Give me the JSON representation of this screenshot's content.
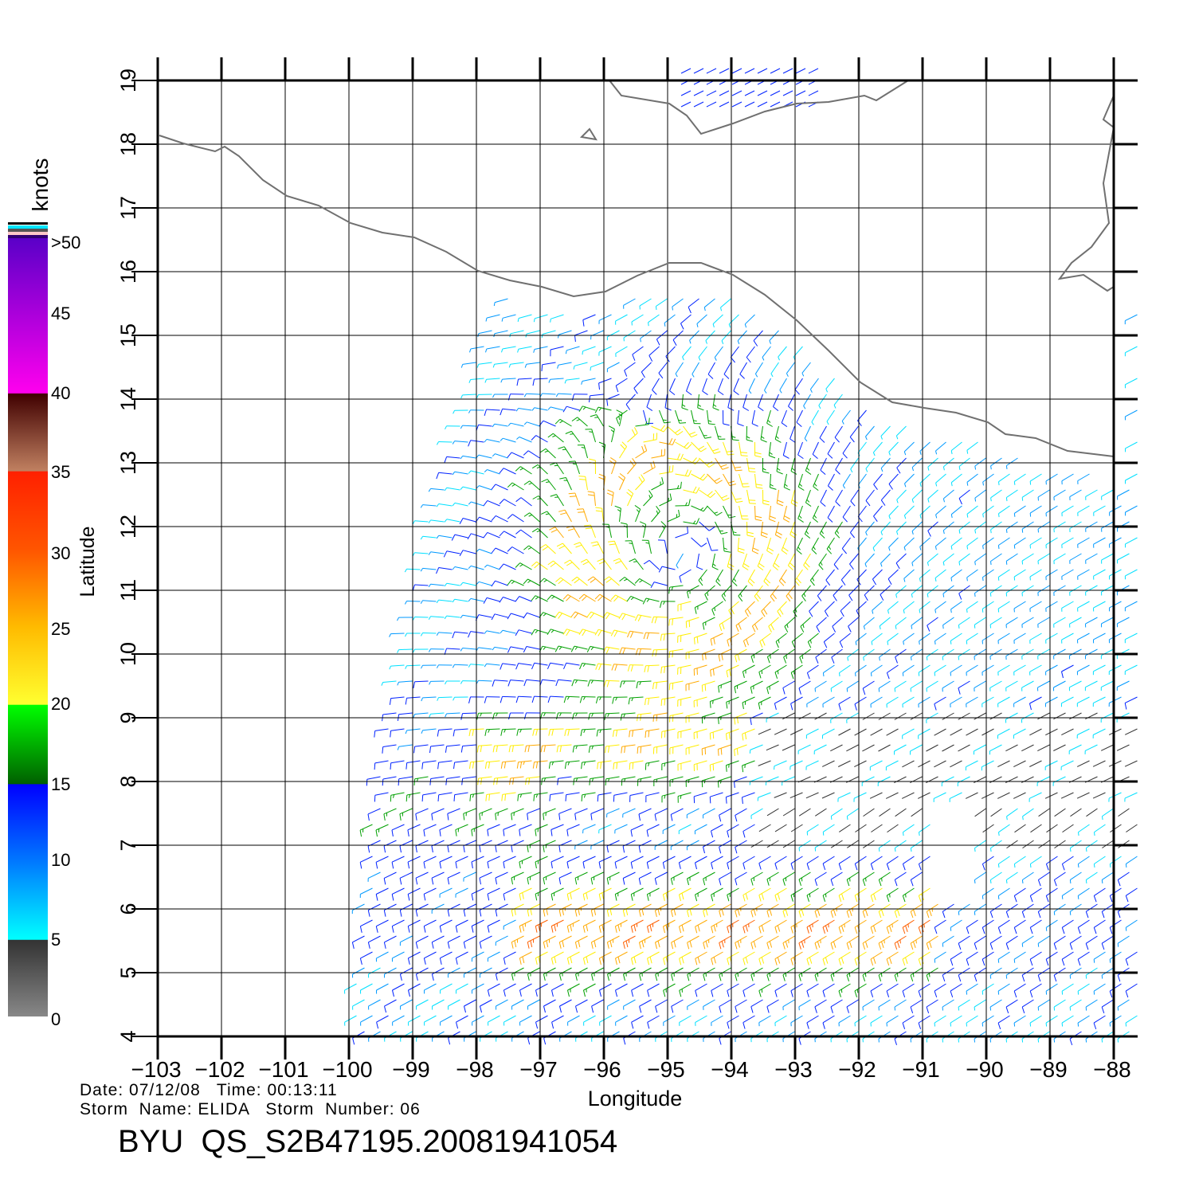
{
  "map": {
    "lon_range": [
      -103,
      -88
    ],
    "lat_range": [
      4,
      19
    ],
    "xlabel": "Longitude",
    "ylabel": "Latitude",
    "lon_ticks": [
      "−103",
      "−102",
      "−101",
      "−100",
      "−99",
      "−98",
      "−97",
      "−96",
      "−95",
      "−94",
      "−93",
      "−92",
      "−91",
      "−90",
      "−89",
      "−88"
    ],
    "lat_ticks": [
      "4",
      "5",
      "6",
      "7",
      "8",
      "9",
      "10",
      "11",
      "12",
      "13",
      "14",
      "15",
      "16",
      "17",
      "18",
      "19"
    ],
    "storm_center_lon": -94.8,
    "storm_center_lat": 11.6
  },
  "colorbar": {
    "unit": "knots",
    "labels": [
      ">50",
      "45",
      "40",
      "35",
      "30",
      "25",
      "20",
      "15",
      "10",
      "5",
      "0"
    ]
  },
  "info": {
    "date_line": "Date: 07/12/08   Time: 00:13:11",
    "storm_line": "Storm  Name: ELIDA   Storm  Number: 06",
    "title": "BYU  QS_S2B47195.20081941054"
  }
}
